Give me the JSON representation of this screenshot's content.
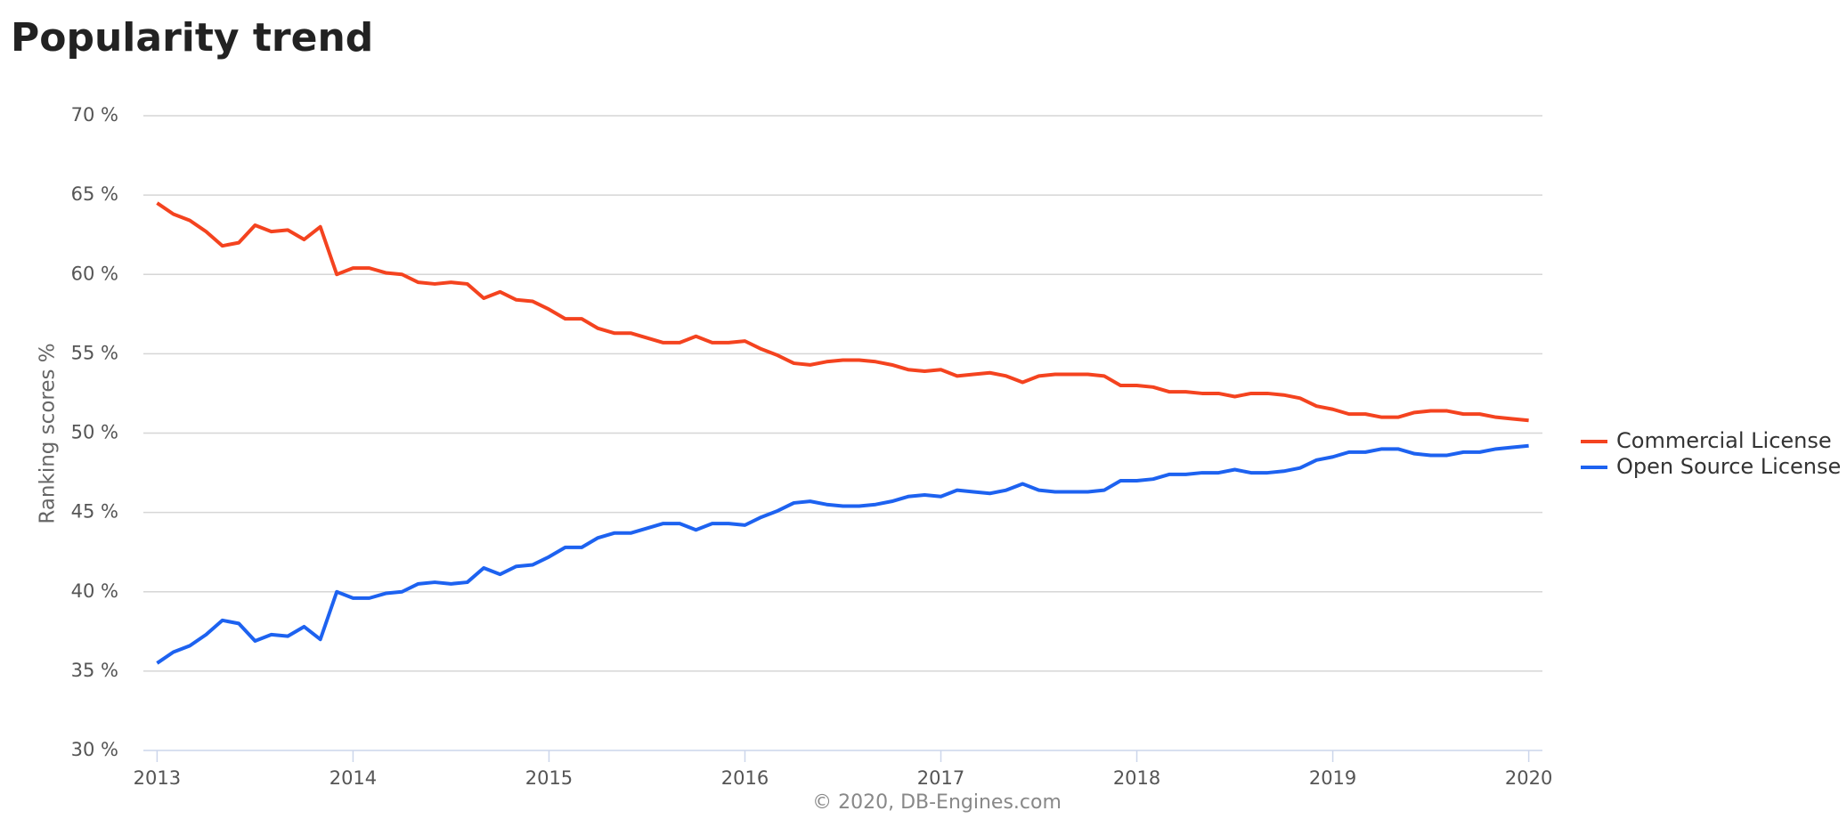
{
  "chart_data": {
    "type": "line",
    "title": "Popularity trend",
    "y_label": "Ranking scores %",
    "credit": "© 2020, DB-Engines.com",
    "x": [
      2013,
      2013.083,
      2013.167,
      2013.25,
      2013.333,
      2013.417,
      2013.5,
      2013.583,
      2013.667,
      2013.75,
      2013.833,
      2013.917,
      2014,
      2014.083,
      2014.167,
      2014.25,
      2014.333,
      2014.417,
      2014.5,
      2014.583,
      2014.667,
      2014.75,
      2014.833,
      2014.917,
      2015,
      2015.083,
      2015.167,
      2015.25,
      2015.333,
      2015.417,
      2015.5,
      2015.583,
      2015.667,
      2015.75,
      2015.833,
      2015.917,
      2016,
      2016.083,
      2016.167,
      2016.25,
      2016.333,
      2016.417,
      2016.5,
      2016.583,
      2016.667,
      2016.75,
      2016.833,
      2016.917,
      2017,
      2017.083,
      2017.167,
      2017.25,
      2017.333,
      2017.417,
      2017.5,
      2017.583,
      2017.667,
      2017.75,
      2017.833,
      2017.917,
      2018,
      2018.083,
      2018.167,
      2018.25,
      2018.333,
      2018.417,
      2018.5,
      2018.583,
      2018.667,
      2018.75,
      2018.833,
      2018.917,
      2019,
      2019.083,
      2019.167,
      2019.25,
      2019.333,
      2019.417,
      2019.5,
      2019.583,
      2019.667,
      2019.75,
      2019.833,
      2019.917,
      2020
    ],
    "series": [
      {
        "name": "Commercial License",
        "color": "#f4431f",
        "values": [
          64.5,
          63.8,
          63.4,
          62.7,
          61.8,
          62.0,
          63.1,
          62.7,
          62.8,
          62.2,
          63.0,
          60.0,
          60.4,
          60.4,
          60.1,
          60.0,
          59.5,
          59.4,
          59.5,
          59.4,
          58.5,
          58.9,
          58.4,
          58.3,
          57.8,
          57.2,
          57.2,
          56.6,
          56.3,
          56.3,
          56.0,
          55.7,
          55.7,
          56.1,
          55.7,
          55.7,
          55.8,
          55.3,
          54.9,
          54.4,
          54.3,
          54.5,
          54.6,
          54.6,
          54.5,
          54.3,
          54.0,
          53.9,
          54.0,
          53.6,
          53.7,
          53.8,
          53.6,
          53.2,
          53.6,
          53.7,
          53.7,
          53.7,
          53.6,
          53.0,
          53.0,
          52.9,
          52.6,
          52.6,
          52.5,
          52.5,
          52.3,
          52.5,
          52.5,
          52.4,
          52.2,
          51.7,
          51.5,
          51.2,
          51.2,
          51.0,
          51.0,
          51.3,
          51.4,
          51.4,
          51.2,
          51.2,
          51.0,
          50.9,
          50.8
        ]
      },
      {
        "name": "Open Source License",
        "color": "#1d62f0",
        "values": [
          35.5,
          36.2,
          36.6,
          37.3,
          38.2,
          38.0,
          36.9,
          37.3,
          37.2,
          37.8,
          37.0,
          40.0,
          39.6,
          39.6,
          39.9,
          40.0,
          40.5,
          40.6,
          40.5,
          40.6,
          41.5,
          41.1,
          41.6,
          41.7,
          42.2,
          42.8,
          42.8,
          43.4,
          43.7,
          43.7,
          44.0,
          44.3,
          44.3,
          43.9,
          44.3,
          44.3,
          44.2,
          44.7,
          45.1,
          45.6,
          45.7,
          45.5,
          45.4,
          45.4,
          45.5,
          45.7,
          46.0,
          46.1,
          46.0,
          46.4,
          46.3,
          46.2,
          46.4,
          46.8,
          46.4,
          46.3,
          46.3,
          46.3,
          46.4,
          47.0,
          47.0,
          47.1,
          47.4,
          47.4,
          47.5,
          47.5,
          47.7,
          47.5,
          47.5,
          47.6,
          47.8,
          48.3,
          48.5,
          48.8,
          48.8,
          49.0,
          49.0,
          48.7,
          48.6,
          48.6,
          48.8,
          48.8,
          49.0,
          49.1,
          49.2
        ]
      }
    ],
    "xlim": [
      2012.93,
      2020.07
    ],
    "xticks": [
      2013,
      2014,
      2015,
      2016,
      2017,
      2018,
      2019,
      2020
    ],
    "ylim": [
      30,
      70
    ],
    "yticks": [
      {
        "value": 30,
        "label": "30 %"
      },
      {
        "value": 35,
        "label": "35 %"
      },
      {
        "value": 40,
        "label": "40 %"
      },
      {
        "value": 45,
        "label": "45 %"
      },
      {
        "value": 50,
        "label": "50 %"
      },
      {
        "value": 55,
        "label": "55 %"
      },
      {
        "value": 60,
        "label": "60 %"
      },
      {
        "value": 65,
        "label": "65 %"
      },
      {
        "value": 70,
        "label": "70 %"
      }
    ],
    "grid": true,
    "legend": "right"
  }
}
